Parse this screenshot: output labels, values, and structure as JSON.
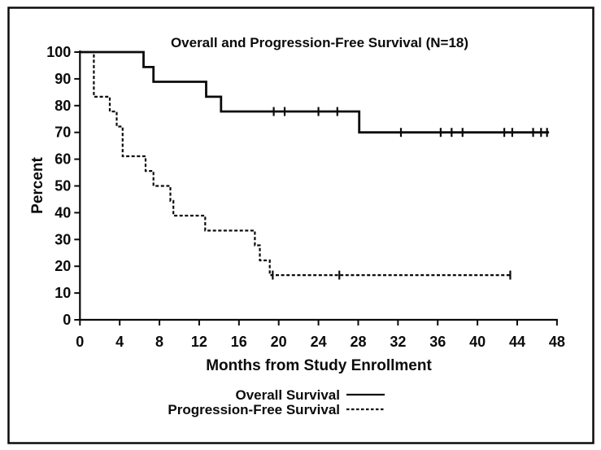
{
  "figure": {
    "type_hint": "kaplan-meier-survival-plot",
    "background_color": "#ffffff",
    "line_color": "#0b0b0b"
  },
  "chart_data": {
    "type": "line",
    "subtype": "kaplan-meier-step",
    "title": "Overall and Progression-Free Survival (N=18)",
    "xlabel": "Months from Study Enrollment",
    "ylabel": "Percent",
    "xlim": [
      0,
      48
    ],
    "ylim": [
      0,
      100
    ],
    "x_ticks": [
      0,
      4,
      8,
      12,
      16,
      20,
      24,
      28,
      32,
      36,
      40,
      44,
      48
    ],
    "y_ticks": [
      0,
      10,
      20,
      30,
      40,
      50,
      60,
      70,
      80,
      90,
      100
    ],
    "grid": false,
    "legend_position": "bottom",
    "series": [
      {
        "name": "Overall Survival",
        "line_style": "solid",
        "color": "#0b0b0b",
        "points": [
          [
            0,
            100
          ],
          [
            6.4,
            100
          ],
          [
            6.4,
            94.4
          ],
          [
            7.4,
            94.4
          ],
          [
            7.4,
            88.9
          ],
          [
            12.7,
            88.9
          ],
          [
            12.7,
            83.3
          ],
          [
            14.2,
            83.3
          ],
          [
            14.2,
            77.8
          ],
          [
            28.1,
            77.8
          ],
          [
            28.1,
            70
          ],
          [
            47.2,
            70
          ]
        ],
        "censor_marks": [
          [
            19.5,
            77.8
          ],
          [
            20.6,
            77.8
          ],
          [
            24.0,
            77.8
          ],
          [
            25.9,
            77.8
          ],
          [
            32.3,
            70
          ],
          [
            36.3,
            70
          ],
          [
            37.4,
            70
          ],
          [
            38.5,
            70
          ],
          [
            42.7,
            70
          ],
          [
            43.5,
            70
          ],
          [
            45.6,
            70
          ],
          [
            46.4,
            70
          ],
          [
            47.0,
            70
          ]
        ]
      },
      {
        "name": "Progression-Free Survival",
        "line_style": "dashed",
        "color": "#0b0b0b",
        "points": [
          [
            0,
            100
          ],
          [
            1.4,
            100
          ],
          [
            1.4,
            83.3
          ],
          [
            3.0,
            83.3
          ],
          [
            3.0,
            77.8
          ],
          [
            3.7,
            77.8
          ],
          [
            3.7,
            72.2
          ],
          [
            4.3,
            72.2
          ],
          [
            4.3,
            61.1
          ],
          [
            6.6,
            61.1
          ],
          [
            6.6,
            55.6
          ],
          [
            7.4,
            55.6
          ],
          [
            7.4,
            50
          ],
          [
            9.1,
            50
          ],
          [
            9.1,
            44.4
          ],
          [
            9.4,
            44.4
          ],
          [
            9.4,
            38.9
          ],
          [
            12.6,
            38.9
          ],
          [
            12.6,
            33.3
          ],
          [
            17.6,
            33.3
          ],
          [
            17.6,
            27.8
          ],
          [
            18.1,
            27.8
          ],
          [
            18.1,
            22.2
          ],
          [
            19.1,
            22.2
          ],
          [
            19.1,
            16.7
          ],
          [
            43.3,
            16.7
          ]
        ],
        "censor_marks": [
          [
            19.4,
            16.7
          ],
          [
            26.1,
            16.7
          ],
          [
            43.3,
            16.7
          ]
        ]
      }
    ]
  },
  "legend": {
    "rows": [
      {
        "label": "Overall Survival",
        "sample": "solid-line"
      },
      {
        "label": "Progression-Free Survival",
        "sample": "dashed-line"
      }
    ]
  }
}
